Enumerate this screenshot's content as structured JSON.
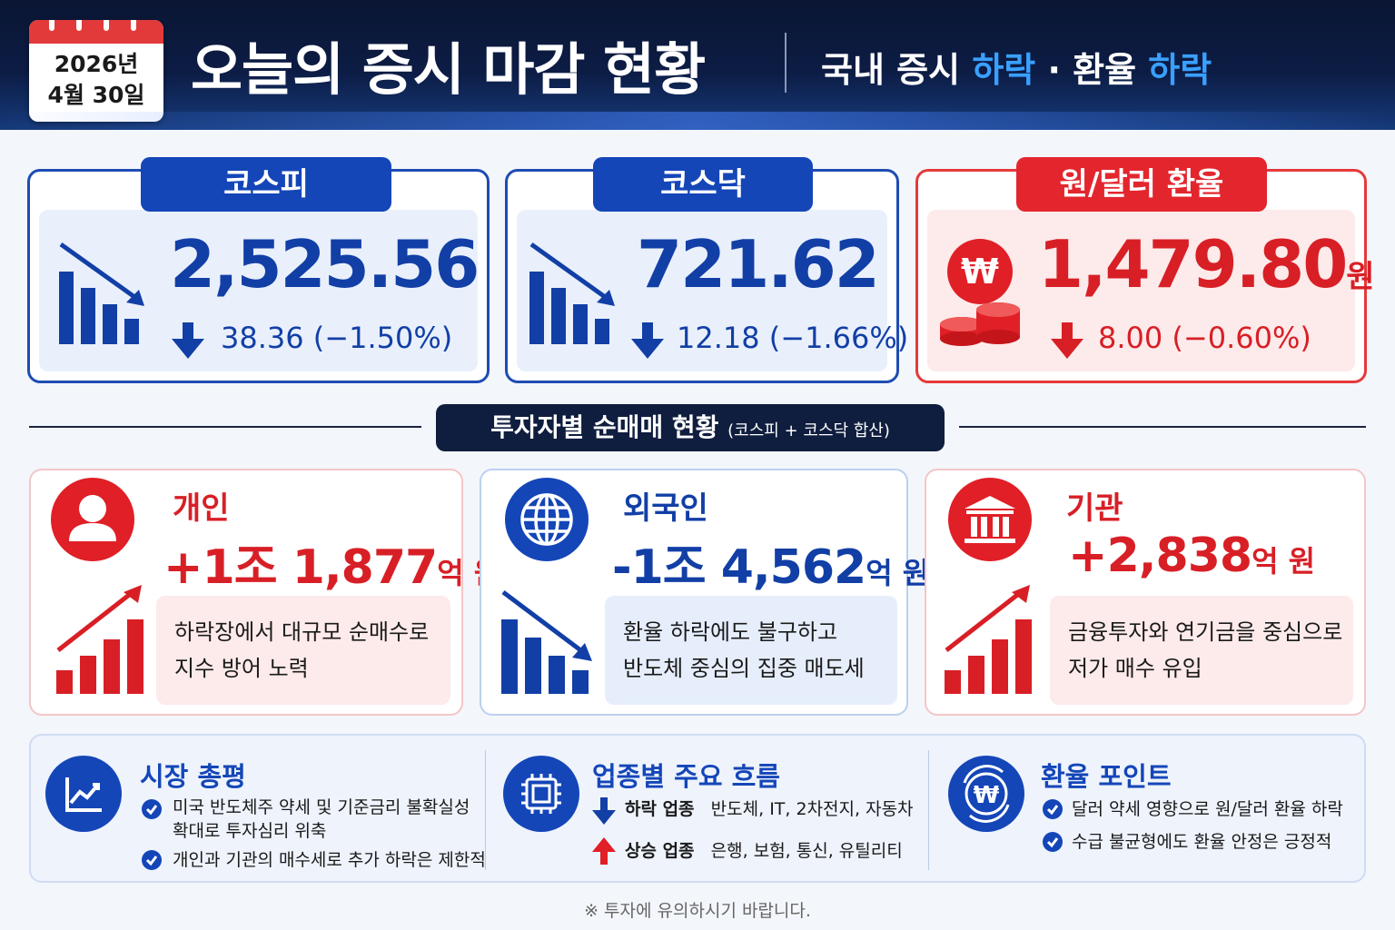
{
  "header": {
    "date_year": "2026년",
    "date_day": "4월 30일",
    "title": "오늘의 증시 마감 현황",
    "subtitle_a": "국내 증시 ",
    "subtitle_a_hl": "하락",
    "subtitle_sep": " · ",
    "subtitle_b": "환율 ",
    "subtitle_b_hl": "하락"
  },
  "indices": {
    "kospi": {
      "label": "코스피",
      "value": "2,525.56",
      "change": "38.36 (−1.50%)"
    },
    "kosdaq": {
      "label": "코스닥",
      "value": "721.62",
      "change": "12.18 (−1.66%)"
    },
    "fx": {
      "label": "원/달러 환율",
      "value": "1,479.80",
      "unit": "원",
      "change": "8.00 (−0.60%)",
      "icon_symbol": "₩"
    }
  },
  "section": {
    "title": "투자자별 순매매 현황",
    "sub": "(코스피 + 코스닥 합산)"
  },
  "investors": {
    "individual": {
      "name": "개인",
      "amount_a": "+1조 1,877",
      "amount_unit": "억 원",
      "note_1": "하락장에서 대규모 순매수로",
      "note_2": "지수 방어 노력"
    },
    "foreign": {
      "name": "외국인",
      "amount_a": "-1조 4,562",
      "amount_unit": "억 원",
      "note_1": "환율 하락에도 불구하고",
      "note_2": "반도체 중심의 집중 매도세"
    },
    "institution": {
      "name": "기관",
      "amount_a": "+2,838",
      "amount_unit": "억 원",
      "note_1": "금융투자와 연기금을 중심으로",
      "note_2": "저가 매수 유입"
    }
  },
  "summary": {
    "market": {
      "title": "시장 총평",
      "item_1a": "미국 반도체주 약세 및 기준금리 불확실성",
      "item_1b": "확대로 투자심리 위축",
      "item_2": "개인과 기관의 매수세로 추가 하락은 제한적"
    },
    "sector": {
      "title": "업종별 주요 흐름",
      "down_label": "하락 업종",
      "down_items": "반도체, IT, 2차전지, 자동차",
      "up_label": "상승 업종",
      "up_items": "은행, 보험, 통신, 유틸리티"
    },
    "fx": {
      "title": "환율 포인트",
      "item_1": "달러 약세 영향으로 원/달러 환율 하락",
      "item_2": "수급 불균형에도 환율 안정은 긍정적",
      "icon_symbol": "₩"
    }
  },
  "footer": "※ 투자에 유의하시기 바랍니다.",
  "colors": {
    "blue": "#1446b8",
    "red": "#e01f26",
    "navy": "#0a1633",
    "accent_light_blue": "#3aa0ff"
  }
}
